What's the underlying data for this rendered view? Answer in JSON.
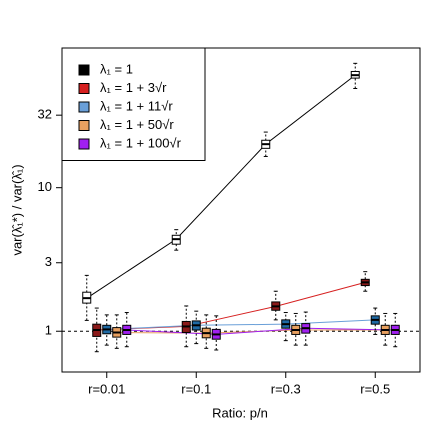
{
  "chart_data": {
    "type": "boxplot",
    "xlabel": "Ratio: p/n",
    "ylabel": "var(λ̂₁*) / var(λ̂₁)",
    "categories": [
      "r=0.01",
      "r=0.1",
      "r=0.3",
      "r=0.5"
    ],
    "log_y": true,
    "ylim": [
      0.52,
      94
    ],
    "yticks": [
      1,
      3,
      10,
      32
    ],
    "hline": 1,
    "legend": "top-left",
    "series": [
      {
        "name": "λ₁ = 1",
        "color": "#000000",
        "fill": "#ffffff",
        "values": [
          1.7,
          4.38,
          20.1,
          60.8
        ],
        "q1": [
          1.57,
          4.04,
          18.8,
          58
        ],
        "q3": [
          1.87,
          4.66,
          21.4,
          64.5
        ],
        "low": [
          1.19,
          3.67,
          16.5,
          49.1
        ],
        "high": [
          2.45,
          5.1,
          24.4,
          73.5
        ]
      },
      {
        "name": "λ₁ = 1 + 3√r",
        "color": "#d62020",
        "fill": "#8b1a1a",
        "values": [
          1.02,
          1.08,
          1.49,
          2.19
        ],
        "q1": [
          0.92,
          0.98,
          1.4,
          2.08
        ],
        "q3": [
          1.12,
          1.17,
          1.6,
          2.3
        ],
        "low": [
          0.72,
          0.78,
          1.2,
          1.9
        ],
        "high": [
          1.45,
          1.5,
          1.9,
          2.6
        ]
      },
      {
        "name": "λ₁ = 1 + 11√r",
        "color": "#6a9fd8",
        "fill": "#1f6aa5",
        "values": [
          1.03,
          1.1,
          1.12,
          1.2
        ],
        "q1": [
          0.96,
          1.02,
          1.05,
          1.12
        ],
        "q3": [
          1.1,
          1.18,
          1.2,
          1.28
        ],
        "low": [
          0.8,
          0.82,
          0.86,
          0.95
        ],
        "high": [
          1.3,
          1.38,
          1.35,
          1.45
        ]
      },
      {
        "name": "λ₁ = 1 + 50√r",
        "color": "#e8a060",
        "fill": "#e8a060",
        "values": [
          0.98,
          0.97,
          1.02,
          1.02
        ],
        "q1": [
          0.91,
          0.9,
          0.95,
          0.95
        ],
        "q3": [
          1.06,
          1.05,
          1.1,
          1.1
        ],
        "low": [
          0.76,
          0.76,
          0.8,
          0.8
        ],
        "high": [
          1.3,
          1.3,
          1.33,
          1.33
        ]
      },
      {
        "name": "λ₁ = 1 + 100√r",
        "color": "#a020f0",
        "fill": "#a020f0",
        "values": [
          1.02,
          0.95,
          1.05,
          1.02
        ],
        "q1": [
          0.95,
          0.88,
          0.97,
          0.95
        ],
        "q3": [
          1.1,
          1.03,
          1.13,
          1.1
        ],
        "low": [
          0.78,
          0.74,
          0.8,
          0.78
        ],
        "high": [
          1.35,
          1.28,
          1.36,
          1.33
        ]
      }
    ]
  }
}
